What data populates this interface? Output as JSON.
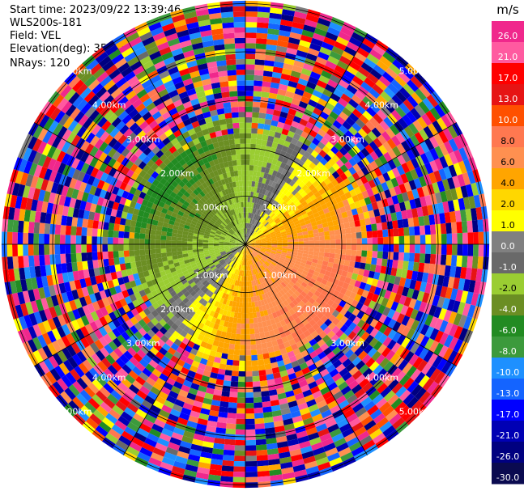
{
  "header": {
    "start_time": "Start time: 2023/09/22 13:39:46",
    "instrument": "WLS200s-181",
    "field": "Field: VEL",
    "elevation": "Elevation(deg): 35.30",
    "nrays": "NRays: 120"
  },
  "chart_data": {
    "type": "heatmap",
    "projection": "polar-ppi",
    "field": "VEL",
    "units": "m/s",
    "n_rays": 120,
    "range_rings_km": [
      1.0,
      2.0,
      3.0,
      4.0,
      5.0
    ],
    "ring_labels": [
      "1.00km",
      "2.00km",
      "3.00km",
      "4.00km",
      "5.00km"
    ],
    "colorbar": {
      "title": "m/s",
      "levels": [
        26.0,
        21.0,
        17.0,
        13.0,
        10.0,
        8.0,
        6.0,
        4.0,
        2.0,
        1.0,
        0.0,
        -1.0,
        -2.0,
        -4.0,
        -6.0,
        -8.0,
        -10.0,
        -13.0,
        -17.0,
        -21.0,
        -26.0,
        -30.0
      ],
      "tick_labels": [
        "26.0",
        "21.0",
        "17.0",
        "13.0",
        "10.0",
        "8.0",
        "6.0",
        "4.0",
        "2.0",
        "1.0",
        "0.0",
        "-1.0",
        "-2.0",
        "-4.0",
        "-6.0",
        "-8.0",
        "-10.0",
        "-13.0",
        "-17.0",
        "-21.0",
        "-26.0",
        "-30.0"
      ],
      "colors": [
        "#f0288c",
        "#ff5aa0",
        "#ff0000",
        "#e61414",
        "#ff5000",
        "#ff7850",
        "#ff9050",
        "#ffa500",
        "#ffd700",
        "#ffff00",
        "#808080",
        "#696969",
        "#9acd32",
        "#6b8e23",
        "#228b22",
        "#3c9a3c",
        "#1e90ff",
        "#1464ff",
        "#0000ff",
        "#0000b4",
        "#000080",
        "#0a0a50"
      ]
    },
    "notes": {
      "inner_region": "Coherent velocities within about 2.5 km: negative (green, -1 to -8 m/s) toward the west/north, positive (yellow/orange, +1 to +6 m/s) toward the east/south",
      "outer_region": "Noisy random velocities beyond about 2.5 km across full colormap range"
    }
  }
}
